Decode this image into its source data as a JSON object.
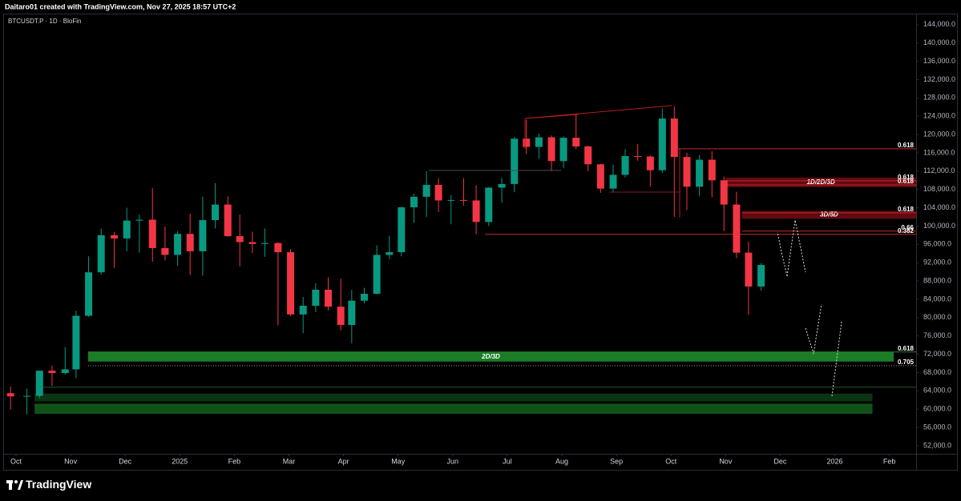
{
  "chart_data": {
    "type": "candlestick",
    "attribution": "Daitaro01 created with TradingView.com, Nov 27, 2025 18:57 UTC+2",
    "title": "BTCUSDT.P · 1D · BloFin",
    "brand": "TradingView",
    "up_color": "#089981",
    "down_color": "#f23645",
    "grid": false,
    "xlim": [
      -0.22,
      16.49
    ],
    "ylim": [
      50250,
      146250
    ],
    "xticks": [
      {
        "value": 0,
        "label": "Oct"
      },
      {
        "value": 1,
        "label": "Nov"
      },
      {
        "value": 2,
        "label": "Dec"
      },
      {
        "value": 3,
        "label": "2025"
      },
      {
        "value": 4,
        "label": "Feb"
      },
      {
        "value": 5,
        "label": "Mar"
      },
      {
        "value": 6,
        "label": "Apr"
      },
      {
        "value": 7,
        "label": "May"
      },
      {
        "value": 8,
        "label": "Jun"
      },
      {
        "value": 9,
        "label": "Jul"
      },
      {
        "value": 10,
        "label": "Aug"
      },
      {
        "value": 11,
        "label": "Sep"
      },
      {
        "value": 12,
        "label": "Oct"
      },
      {
        "value": 13,
        "label": "Nov"
      },
      {
        "value": 14,
        "label": "Dec"
      },
      {
        "value": 15,
        "label": "2026"
      },
      {
        "value": 16,
        "label": "Feb"
      }
    ],
    "yticks": [
      {
        "value": 52000,
        "label": "52,000.0"
      },
      {
        "value": 56000,
        "label": "56,000.0"
      },
      {
        "value": 60000,
        "label": "60,000.0"
      },
      {
        "value": 64000,
        "label": "64,000.0"
      },
      {
        "value": 68000,
        "label": "68,000.0"
      },
      {
        "value": 72000,
        "label": "72,000.0"
      },
      {
        "value": 76000,
        "label": "76,000.0"
      },
      {
        "value": 80000,
        "label": "80,000.0"
      },
      {
        "value": 84000,
        "label": "84,000.0"
      },
      {
        "value": 88000,
        "label": "88,000.0"
      },
      {
        "value": 92000,
        "label": "92,000.0"
      },
      {
        "value": 96000,
        "label": "96,000.0"
      },
      {
        "value": 100000,
        "label": "100,000.0"
      },
      {
        "value": 104000,
        "label": "104,000.0"
      },
      {
        "value": 108000,
        "label": "108,000.0"
      },
      {
        "value": 112000,
        "label": "112,000.0"
      },
      {
        "value": 116000,
        "label": "116,000.0"
      },
      {
        "value": 120000,
        "label": "120,000.0"
      },
      {
        "value": 124000,
        "label": "124,000.0"
      },
      {
        "value": 128000,
        "label": "128,000.0"
      },
      {
        "value": 132000,
        "label": "132,000.0"
      },
      {
        "value": 136000,
        "label": "136,000.0"
      },
      {
        "value": 140000,
        "label": "140,000.0"
      },
      {
        "value": 144000,
        "label": "144,000.0"
      }
    ],
    "x": [
      -0.1,
      0.2,
      0.43,
      0.66,
      0.9,
      1.1,
      1.33,
      1.56,
      1.8,
      2.03,
      2.26,
      2.5,
      2.73,
      2.96,
      3.19,
      3.42,
      3.65,
      3.88,
      4.1,
      4.33,
      4.56,
      4.8,
      5.03,
      5.26,
      5.49,
      5.72,
      5.95,
      6.15,
      6.38,
      6.61,
      6.84,
      7.06,
      7.29,
      7.52,
      7.74,
      7.97,
      8.2,
      8.43,
      8.66,
      8.9,
      9.13,
      9.35,
      9.58,
      9.81,
      10.03,
      10.26,
      10.48,
      10.71,
      10.94,
      11.16,
      11.39,
      11.62,
      11.84,
      12.06,
      12.29,
      12.52,
      12.75,
      12.97,
      13.2,
      13.42,
      13.65
    ],
    "open": [
      63500,
      62800,
      62900,
      68400,
      67900,
      68700,
      80400,
      89900,
      98000,
      97300,
      101200,
      101400,
      95200,
      93700,
      98300,
      94500,
      101300,
      104700,
      97800,
      96500,
      96100,
      96300,
      94300,
      80700,
      82600,
      86100,
      82400,
      78400,
      83700,
      85200,
      93700,
      94300,
      104100,
      106400,
      109000,
      105600,
      105700,
      105600,
      100900,
      108400,
      109200,
      119100,
      117300,
      119400,
      114200,
      119300,
      117400,
      113500,
      108200,
      111200,
      115300,
      115200,
      112200,
      123500,
      115100,
      108600,
      114500,
      110000,
      104700,
      94200,
      86800
    ],
    "high": [
      65000,
      64500,
      68400,
      69500,
      73600,
      81500,
      93400,
      99500,
      98700,
      104000,
      102500,
      108300,
      99900,
      98900,
      102700,
      106400,
      109400,
      106500,
      102500,
      98800,
      99500,
      96500,
      95000,
      84500,
      87500,
      88800,
      88500,
      86100,
      86500,
      95800,
      97900,
      104300,
      107100,
      112000,
      110500,
      106800,
      110500,
      108900,
      108500,
      110500,
      119500,
      123200,
      120200,
      119800,
      119600,
      124500,
      117600,
      113600,
      113400,
      116800,
      117900,
      115400,
      125700,
      126200,
      116000,
      115500,
      116400,
      110800,
      107500,
      96600,
      91900
    ],
    "low": [
      59900,
      58900,
      62400,
      65100,
      67500,
      66800,
      80200,
      89400,
      90800,
      94500,
      94200,
      92200,
      92500,
      91300,
      89300,
      89200,
      99500,
      97700,
      91200,
      94100,
      93300,
      78300,
      80300,
      76600,
      81200,
      81600,
      77200,
      74400,
      83100,
      85100,
      92800,
      93400,
      100700,
      102000,
      103100,
      100400,
      104500,
      98200,
      100000,
      105100,
      107400,
      115700,
      114700,
      112000,
      112700,
      116800,
      112000,
      107300,
      107300,
      110600,
      114300,
      108600,
      111600,
      102000,
      103500,
      106500,
      106300,
      98900,
      93000,
      80600,
      85900
    ],
    "close": [
      62800,
      62900,
      68400,
      67900,
      68700,
      80400,
      89900,
      98000,
      97300,
      101200,
      101400,
      95200,
      93700,
      98300,
      94500,
      101300,
      104700,
      97800,
      96500,
      96100,
      96300,
      94300,
      80700,
      82600,
      86100,
      82400,
      78400,
      83700,
      85200,
      93700,
      94300,
      104100,
      106400,
      109000,
      105600,
      105700,
      105600,
      100900,
      108400,
      109200,
      119100,
      117300,
      119400,
      114200,
      119300,
      117400,
      113500,
      108200,
      111200,
      115300,
      115200,
      112200,
      123500,
      115100,
      108600,
      114500,
      110000,
      104700,
      94200,
      86800,
      91500
    ],
    "zones": [
      {
        "label": "1D/2D/3D",
        "x": [
          13.0,
          16.49
        ],
        "y": [
          108500,
          110600
        ],
        "color": "#6d0b14"
      },
      {
        "label": "3D/5D",
        "x": [
          13.3,
          16.49
        ],
        "y": [
          101600,
          103300
        ],
        "color": "#6d0b14"
      },
      {
        "label": "2D/3D",
        "x": [
          1.32,
          16.08
        ],
        "y": [
          70400,
          72500
        ],
        "color": "#1e8c2a"
      },
      {
        "x": [
          0.34,
          15.69
        ],
        "y": [
          61700,
          63400
        ],
        "color": "#0c3a12"
      },
      {
        "x": [
          0.34,
          15.69
        ],
        "y": [
          59000,
          61200
        ],
        "color": "#125c1c"
      }
    ],
    "levels": [
      {
        "label": "0.618",
        "x": [
          12.06,
          16.49
        ],
        "y": 116900,
        "color": "#c62828"
      },
      {
        "label": "0.618",
        "x": [
          13.0,
          16.49
        ],
        "y": 109900,
        "color": "#c62828"
      },
      {
        "label": "0.618",
        "x": [
          13.0,
          16.49
        ],
        "y": 109000,
        "color": "#c62828"
      },
      {
        "label": "0.618",
        "x": [
          13.3,
          16.49
        ],
        "y": 102900,
        "color": "#c62828"
      },
      {
        "label": "0.66",
        "x": [
          13.3,
          16.49
        ],
        "y": 98900,
        "color": "#c62828"
      },
      {
        "label": "0.382",
        "x": [
          8.59,
          16.49
        ],
        "y": 98200,
        "color": "#c62828"
      },
      {
        "label": "0.618",
        "x": [
          1.32,
          16.49
        ],
        "y": 72500,
        "color": "#2e7d32"
      },
      {
        "label": "0.705",
        "x": [
          1.32,
          16.49
        ],
        "y": 69500,
        "color": "#9e9e9e",
        "dash": true
      },
      {
        "x": [
          0.5,
          16.49
        ],
        "y": 64800,
        "color": "#1b5e20"
      }
    ]
  }
}
